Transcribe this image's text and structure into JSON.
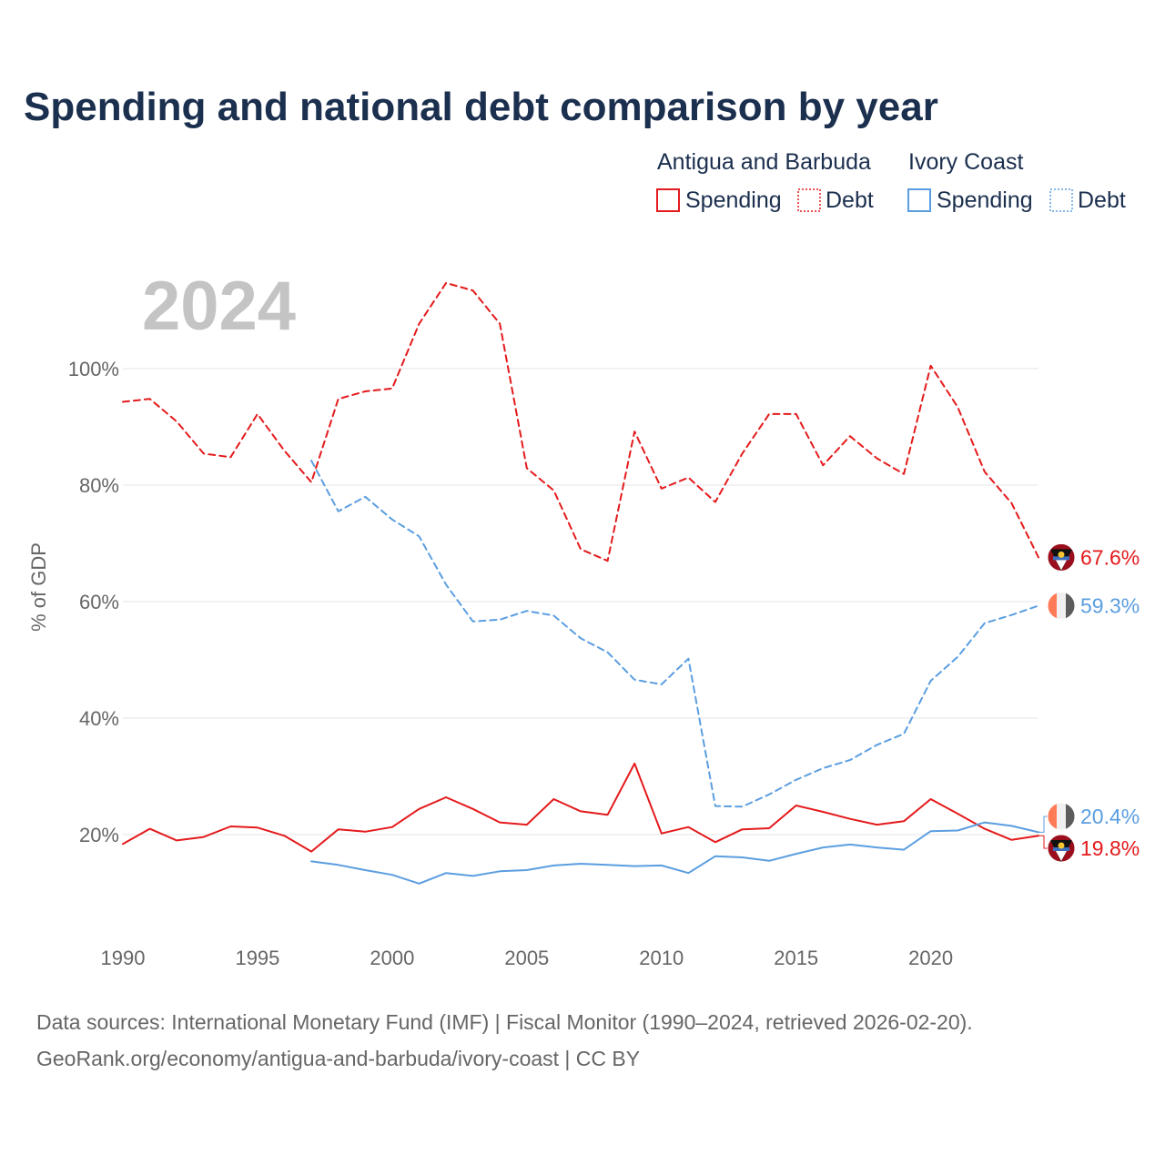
{
  "chart_data": {
    "type": "line",
    "title": "Spending and national debt comparison by year",
    "current_year": "2024",
    "ylabel": "% of GDP",
    "xlabel": "",
    "xlim": [
      1990,
      2024
    ],
    "ylim": [
      0,
      115
    ],
    "y_ticks": [
      {
        "value": 20,
        "label": "20%"
      },
      {
        "value": 40,
        "label": "40%"
      },
      {
        "value": 60,
        "label": "60%"
      },
      {
        "value": 80,
        "label": "80%"
      },
      {
        "value": 100,
        "label": "100%"
      }
    ],
    "x_ticks": [
      {
        "value": 1990,
        "label": "1990"
      },
      {
        "value": 1995,
        "label": "1995"
      },
      {
        "value": 2000,
        "label": "2000"
      },
      {
        "value": 2005,
        "label": "2005"
      },
      {
        "value": 2010,
        "label": "2010"
      },
      {
        "value": 2015,
        "label": "2015"
      },
      {
        "value": 2020,
        "label": "2020"
      }
    ],
    "legend": {
      "groups": [
        {
          "name": "Antigua and Barbuda",
          "color": "#e41a1c",
          "items": [
            "Spending",
            "Debt"
          ]
        },
        {
          "name": "Ivory Coast",
          "color": "#5b9ee0",
          "items": [
            "Spending",
            "Debt"
          ]
        }
      ]
    },
    "series": [
      {
        "name": "Antigua and Barbuda Debt",
        "country": "Antigua and Barbuda",
        "metric": "Debt",
        "color": "#e41a1c",
        "dash": "dashed",
        "end_label": "67.6%",
        "x": [
          1990,
          1991,
          1992,
          1993,
          1994,
          1995,
          1996,
          1997,
          1998,
          1999,
          2000,
          2001,
          2002,
          2003,
          2004,
          2005,
          2006,
          2007,
          2008,
          2009,
          2010,
          2011,
          2012,
          2013,
          2014,
          2015,
          2016,
          2017,
          2018,
          2019,
          2020,
          2021,
          2022,
          2023,
          2024
        ],
        "values": [
          94.3,
          94.8,
          90.9,
          85.4,
          84.8,
          92.2,
          85.9,
          80.5,
          94.8,
          96.1,
          96.6,
          107.7,
          114.7,
          113.4,
          107.7,
          82.9,
          79.1,
          69.0,
          67.0,
          89.2,
          79.4,
          81.3,
          77.1,
          85.4,
          92.2,
          92.2,
          83.4,
          88.4,
          84.6,
          81.9,
          100.5,
          93.4,
          82.3,
          76.9,
          67.6
        ]
      },
      {
        "name": "Ivory Coast Debt",
        "country": "Ivory Coast",
        "metric": "Debt",
        "color": "#5b9ee0",
        "dash": "dashed",
        "end_label": "59.3%",
        "x": [
          1997,
          1998,
          1999,
          2000,
          2001,
          2002,
          2003,
          2004,
          2005,
          2006,
          2007,
          2008,
          2009,
          2010,
          2011,
          2012,
          2013,
          2014,
          2015,
          2016,
          2017,
          2018,
          2019,
          2020,
          2021,
          2022,
          2023,
          2024
        ],
        "values": [
          84.2,
          75.5,
          78.0,
          74.1,
          71.2,
          62.9,
          56.6,
          56.9,
          58.4,
          57.6,
          53.7,
          51.3,
          46.6,
          45.8,
          50.2,
          24.9,
          24.8,
          26.9,
          29.4,
          31.4,
          32.8,
          35.4,
          37.3,
          46.4,
          50.5,
          56.3,
          57.7,
          59.3
        ]
      },
      {
        "name": "Antigua and Barbuda Spending",
        "country": "Antigua and Barbuda",
        "metric": "Spending",
        "color": "#e41a1c",
        "dash": "solid",
        "end_label": "19.8%",
        "x": [
          1990,
          1991,
          1992,
          1993,
          1994,
          1995,
          1996,
          1997,
          1998,
          1999,
          2000,
          2001,
          2002,
          2003,
          2004,
          2005,
          2006,
          2007,
          2008,
          2009,
          2010,
          2011,
          2012,
          2013,
          2014,
          2015,
          2016,
          2017,
          2018,
          2019,
          2020,
          2021,
          2022,
          2023,
          2024
        ],
        "values": [
          18.4,
          21.0,
          19.0,
          19.6,
          21.4,
          21.2,
          19.8,
          17.1,
          20.9,
          20.5,
          21.3,
          24.4,
          26.4,
          24.4,
          22.1,
          21.7,
          26.1,
          24.0,
          23.4,
          32.2,
          20.2,
          21.3,
          18.7,
          20.9,
          21.1,
          25.0,
          23.9,
          22.7,
          21.7,
          22.3,
          26.1,
          23.6,
          21.0,
          19.1,
          19.8
        ]
      },
      {
        "name": "Ivory Coast Spending",
        "country": "Ivory Coast",
        "metric": "Spending",
        "color": "#5b9ee0",
        "dash": "solid",
        "end_label": "20.4%",
        "x": [
          1997,
          1998,
          1999,
          2000,
          2001,
          2002,
          2003,
          2004,
          2005,
          2006,
          2007,
          2008,
          2009,
          2010,
          2011,
          2012,
          2013,
          2014,
          2015,
          2016,
          2017,
          2018,
          2019,
          2020,
          2021,
          2022,
          2023,
          2024
        ],
        "values": [
          15.4,
          14.8,
          13.9,
          13.1,
          11.6,
          13.4,
          12.9,
          13.7,
          13.9,
          14.7,
          15.0,
          14.8,
          14.6,
          14.7,
          13.4,
          16.3,
          16.1,
          15.5,
          16.7,
          17.8,
          18.3,
          17.8,
          17.4,
          20.6,
          20.7,
          22.1,
          21.5,
          20.4
        ]
      }
    ]
  },
  "footer": {
    "source_line1": "Data sources: International Monetary Fund (IMF) | Fiscal Monitor (1990–2024, retrieved 2026-02-20).",
    "source_line2": "GeoRank.org/economy/antigua-and-barbuda/ivory-coast | CC BY"
  },
  "colors": {
    "title": "#1b2f4e",
    "antigua": "#e41a1c",
    "ivory_coast": "#5b9ee0",
    "tick": "#666666",
    "grid": "#e4e4e4",
    "big_year": "#c4c4c4"
  }
}
